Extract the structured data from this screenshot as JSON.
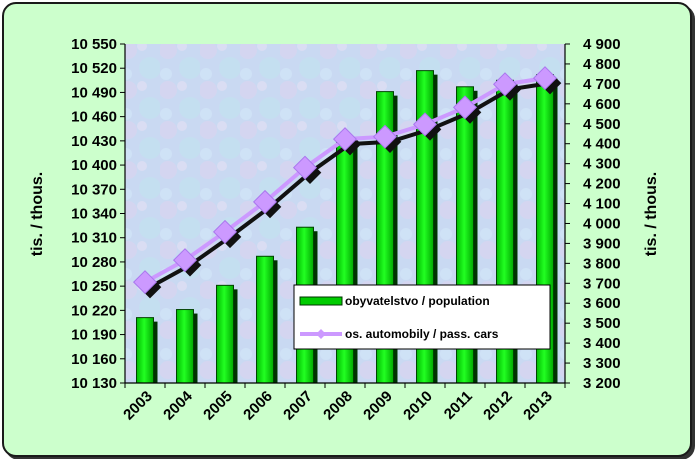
{
  "chart_data": {
    "type": "bar",
    "categories": [
      "2003",
      "2004",
      "2005",
      "2006",
      "2007",
      "2008",
      "2009",
      "2010",
      "2011",
      "2012",
      "2013"
    ],
    "series": [
      {
        "name": "obyvatelstvo / population",
        "type": "bar",
        "axis": "left",
        "values": [
          10211,
          10221,
          10251,
          10287,
          10323,
          10430,
          10491,
          10517,
          10497,
          10505,
          10512
        ]
      },
      {
        "name": "os. automobily / pass. cars",
        "type": "line",
        "axis": "right",
        "values": [
          3706,
          3816,
          3958,
          4108,
          4280,
          4423,
          4435,
          4497,
          4582,
          4698,
          4729
        ]
      }
    ],
    "ylabel_left": "tis. / thous.",
    "ylabel_right": "tis. / thous.",
    "ylim_left": [
      10130,
      10550
    ],
    "yticks_left": [
      "10 130",
      "10 160",
      "10 190",
      "10 220",
      "10 250",
      "10 280",
      "10 310",
      "10 340",
      "10 370",
      "10 400",
      "10 430",
      "10 460",
      "10 490",
      "10 520",
      "10 550"
    ],
    "ylim_right": [
      3200,
      4900
    ],
    "yticks_right": [
      "3 200",
      "3 300",
      "3 400",
      "3 500",
      "3 600",
      "3 700",
      "3 800",
      "3 900",
      "4 000",
      "4 100",
      "4 200",
      "4 300",
      "4 400",
      "4 500",
      "4 600",
      "4 700",
      "4 800",
      "4 900"
    ],
    "legend_position": "lower-right inside plot",
    "colors": {
      "bar": "#00cc00",
      "bar_shadow": "#003300",
      "line": "#cc99ff",
      "line_shadow": "#111111",
      "frame_background": "#ccffcc",
      "plot_background": "#c8d8f0"
    }
  }
}
